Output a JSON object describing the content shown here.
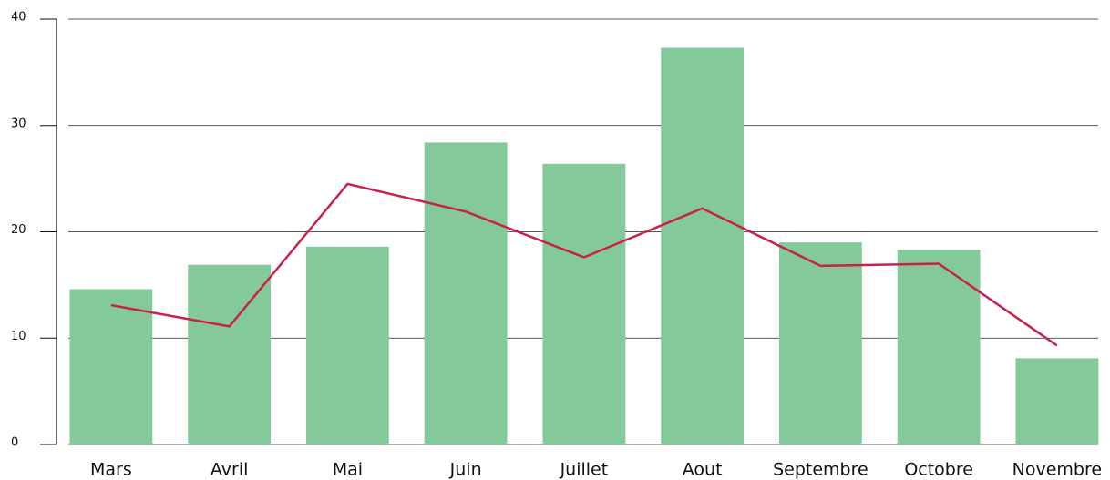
{
  "chart_data": {
    "type": "bar",
    "categories": [
      "Mars",
      "Avril",
      "Mai",
      "Juin",
      "Juillet",
      "Aout",
      "Septembre",
      "Octobre",
      "Novembre"
    ],
    "series": [
      {
        "type": "bar",
        "color": "#84c99a",
        "values": [
          14.6,
          16.9,
          18.6,
          28.4,
          26.4,
          37.3,
          19.0,
          18.3,
          8.1
        ]
      },
      {
        "type": "line",
        "color": "#c8224a",
        "values": [
          13.1,
          11.1,
          24.5,
          21.9,
          17.6,
          22.2,
          16.8,
          17.0,
          9.3
        ]
      }
    ],
    "ylim": [
      0,
      40
    ],
    "yticks": [
      0,
      10,
      20,
      30,
      40
    ],
    "grid": true
  }
}
